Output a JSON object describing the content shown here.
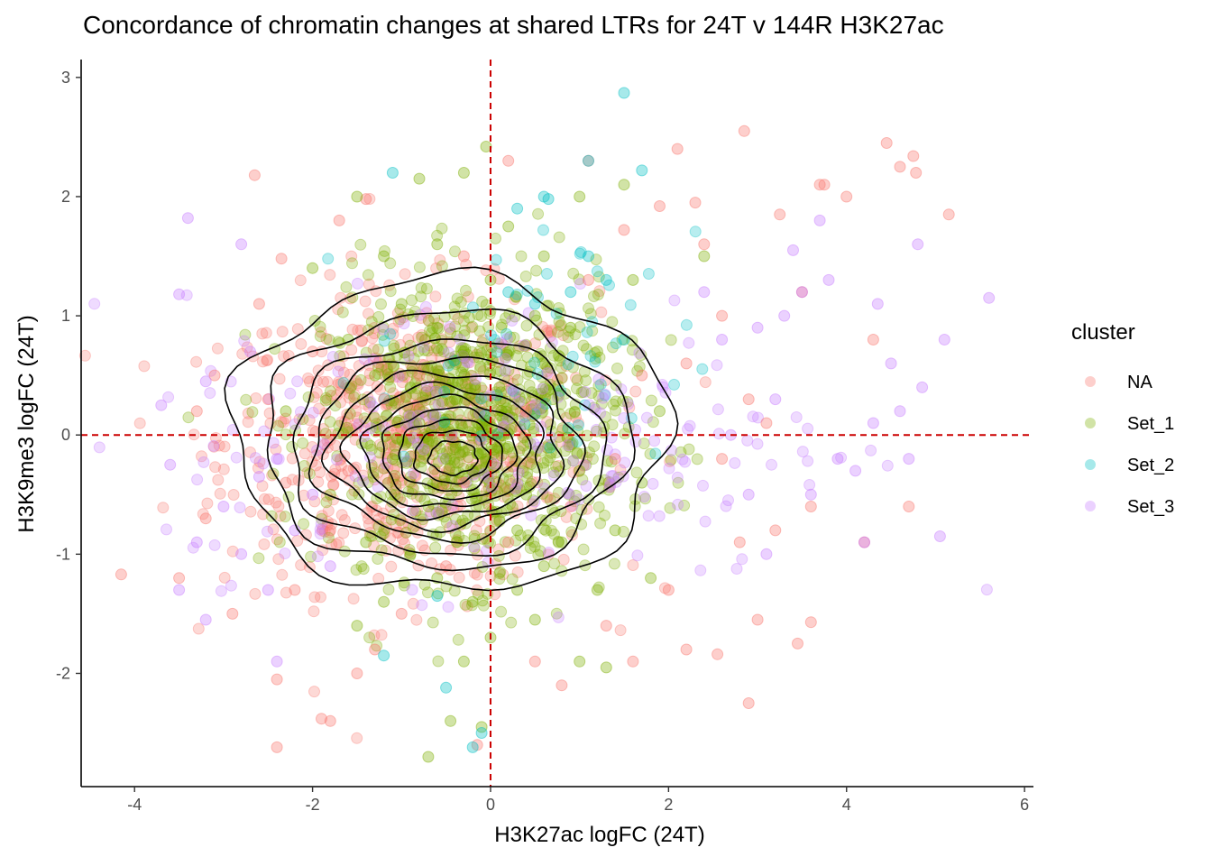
{
  "chart_data": {
    "type": "scatter",
    "title": "Concordance of chromatin changes at shared LTRs for 24T v 144R H3K27ac",
    "xlabel": "H3K27ac logFC (24T)",
    "ylabel": "H3K9me3 logFC (24T)",
    "xlim": [
      -4.6,
      6.1
    ],
    "ylim": [
      -2.95,
      3.15
    ],
    "xticks": [
      -4,
      -2,
      0,
      2,
      4,
      6
    ],
    "xtick_labels": [
      "-4",
      "-2",
      "0",
      "2",
      "4",
      "6"
    ],
    "yticks": [
      -2,
      -1,
      0,
      1,
      2,
      3
    ],
    "ytick_labels": [
      "-2",
      "-1",
      "0",
      "1",
      "2",
      "3"
    ],
    "reference_lines": [
      {
        "orientation": "vertical",
        "value": 0,
        "color": "#cc0000",
        "style": "dashed"
      },
      {
        "orientation": "horizontal",
        "value": 0,
        "color": "#cc0000",
        "style": "dashed"
      }
    ],
    "legend": {
      "title": "cluster",
      "position": "right",
      "entries": [
        {
          "label": "NA",
          "color": "#F8766D"
        },
        {
          "label": "Set_1",
          "color": "#7CAE00"
        },
        {
          "label": "Set_2",
          "color": "#00BFC4"
        },
        {
          "label": "Set_3",
          "color": "#C77CFF"
        }
      ]
    },
    "point_alpha": 0.3,
    "series": [
      {
        "name": "NA",
        "color": "#F8766D",
        "points": [
          [
            -4.15,
            -1.17
          ],
          [
            -3.5,
            -1.2
          ],
          [
            -2.65,
            2.18
          ],
          [
            -2.4,
            -2.62
          ],
          [
            -2.4,
            -2.05
          ],
          [
            -2.35,
            1.48
          ],
          [
            -1.9,
            -2.38
          ],
          [
            -1.8,
            -2.4
          ],
          [
            -1.7,
            1.8
          ],
          [
            -1.4,
            1.98
          ],
          [
            -1.0,
            -1.5
          ],
          [
            -0.3,
            1.5
          ],
          [
            -0.15,
            -2.6
          ],
          [
            0.2,
            2.3
          ],
          [
            0.5,
            -1.9
          ],
          [
            1.1,
            2.3
          ],
          [
            1.5,
            1.72
          ],
          [
            1.9,
            1.92
          ],
          [
            2.1,
            2.4
          ],
          [
            2.2,
            -1.8
          ],
          [
            2.3,
            1.95
          ],
          [
            2.4,
            1.6
          ],
          [
            2.55,
            -1.84
          ],
          [
            2.8,
            -0.9
          ],
          [
            2.85,
            2.55
          ],
          [
            2.9,
            -2.25
          ],
          [
            3.0,
            -1.55
          ],
          [
            3.25,
            1.85
          ],
          [
            3.45,
            -1.75
          ],
          [
            3.6,
            -1.57
          ],
          [
            3.7,
            2.1
          ],
          [
            3.75,
            2.1
          ],
          [
            4.0,
            2.0
          ],
          [
            4.45,
            2.45
          ],
          [
            4.6,
            2.25
          ],
          [
            4.75,
            2.34
          ],
          [
            4.78,
            2.2
          ],
          [
            5.15,
            1.85
          ],
          [
            3.5,
            1.2
          ],
          [
            3.2,
            -0.8
          ],
          [
            3.6,
            -0.6
          ],
          [
            4.2,
            -0.9
          ],
          [
            4.3,
            0.8
          ],
          [
            4.7,
            -0.6
          ],
          [
            2.6,
            -0.2
          ],
          [
            2.9,
            0.3
          ],
          [
            3.1,
            0.1
          ],
          [
            -3.1,
            0.5
          ],
          [
            -3.2,
            -0.7
          ],
          [
            -2.9,
            -1.5
          ],
          [
            -2.6,
            1.1
          ],
          [
            -3.3,
            0.2
          ],
          [
            -2.2,
            -1.3
          ],
          [
            -1.5,
            -2.0
          ],
          [
            -1.3,
            -1.8
          ],
          [
            0.8,
            -2.1
          ],
          [
            1.3,
            -1.6
          ],
          [
            1.6,
            -1.9
          ],
          [
            2.0,
            -1.3
          ],
          [
            2.6,
            1.0
          ],
          [
            -0.8,
            0.5
          ],
          [
            -0.3,
            -0.4
          ],
          [
            0.4,
            0.2
          ],
          [
            -1.6,
            -0.3
          ],
          [
            -1.2,
            0.3
          ],
          [
            0.9,
            -0.6
          ],
          [
            1.7,
            0.5
          ],
          [
            -2.0,
            0.7
          ],
          [
            -2.3,
            -0.4
          ],
          [
            1.1,
            1.3
          ],
          [
            -0.5,
            -1.1
          ],
          [
            0.2,
            -0.9
          ],
          [
            1.4,
            -0.2
          ],
          [
            2.2,
            0.6
          ],
          [
            -1.8,
            -0.8
          ],
          [
            -2.5,
            0.3
          ]
        ]
      },
      {
        "name": "Set_1",
        "color": "#7CAE00",
        "points": [
          [
            -0.7,
            -2.7
          ],
          [
            -0.45,
            -2.4
          ],
          [
            -0.1,
            -2.45
          ],
          [
            -0.05,
            2.42
          ],
          [
            -0.3,
            2.2
          ],
          [
            -0.8,
            2.15
          ],
          [
            -1.5,
            2.0
          ],
          [
            -1.2,
            -1.4
          ],
          [
            -1.5,
            -1.6
          ],
          [
            0.5,
            -1.55
          ],
          [
            1.0,
            -1.9
          ],
          [
            1.3,
            -1.95
          ],
          [
            1.8,
            -1.2
          ],
          [
            2.4,
            1.5
          ],
          [
            1.5,
            2.1
          ],
          [
            1.0,
            2.0
          ],
          [
            0.2,
            1.75
          ],
          [
            -0.6,
            1.6
          ],
          [
            -1.2,
            1.5
          ],
          [
            -2.0,
            1.4
          ],
          [
            -0.3,
            -1.9
          ],
          [
            0.0,
            -1.7
          ],
          [
            0.3,
            -1.3
          ],
          [
            -0.9,
            -1.0
          ],
          [
            0.6,
            -1.1
          ],
          [
            1.4,
            -0.8
          ],
          [
            -1.6,
            0.8
          ],
          [
            -0.6,
            0.9
          ],
          [
            0.5,
            1.0
          ],
          [
            1.2,
            0.7
          ],
          [
            -0.4,
            0.3
          ],
          [
            0.1,
            0.4
          ],
          [
            -0.2,
            -0.3
          ],
          [
            -0.7,
            -0.6
          ],
          [
            0.4,
            -0.5
          ],
          [
            1.0,
            -0.3
          ],
          [
            -1.1,
            -0.2
          ],
          [
            -0.9,
            0.4
          ],
          [
            0.7,
            0.3
          ],
          [
            -0.3,
            0.7
          ],
          [
            -0.5,
            -0.2
          ],
          [
            -0.1,
            0.1
          ],
          [
            0.2,
            -0.1
          ],
          [
            -0.8,
            0.1
          ],
          [
            -1.3,
            0.5
          ],
          [
            0.9,
            0.9
          ],
          [
            1.6,
            1.3
          ],
          [
            -1.0,
            1.1
          ],
          [
            0.3,
            -0.8
          ],
          [
            -0.6,
            -1.2
          ],
          [
            0.8,
            -0.9
          ],
          [
            1.7,
            -0.4
          ],
          [
            -1.8,
            -0.5
          ],
          [
            -2.3,
            0.2
          ],
          [
            1.9,
            0.2
          ],
          [
            0.0,
            1.3
          ],
          [
            -0.2,
            -1.4
          ],
          [
            0.6,
            1.5
          ],
          [
            -1.4,
            -0.9
          ],
          [
            1.2,
            -1.3
          ]
        ]
      },
      {
        "name": "Set_2",
        "color": "#00BFC4",
        "points": [
          [
            1.5,
            2.87
          ],
          [
            1.1,
            2.3
          ],
          [
            1.7,
            2.22
          ],
          [
            -1.1,
            2.2
          ],
          [
            0.6,
            2.0
          ],
          [
            0.65,
            1.98
          ],
          [
            0.3,
            1.9
          ],
          [
            1.1,
            1.5
          ],
          [
            1.3,
            1.3
          ],
          [
            0.9,
            1.2
          ],
          [
            0.5,
            1.1
          ],
          [
            -0.1,
            -2.5
          ],
          [
            -0.2,
            -2.62
          ],
          [
            -0.5,
            -2.12
          ],
          [
            -1.2,
            -1.85
          ],
          [
            -0.6,
            -1.35
          ],
          [
            1.5,
            0.8
          ],
          [
            0.2,
            1.2
          ]
        ]
      },
      {
        "name": "Set_3",
        "color": "#C77CFF",
        "points": [
          [
            -3.4,
            1.82
          ],
          [
            -3.5,
            1.18
          ],
          [
            -3.5,
            -1.3
          ],
          [
            -3.2,
            -1.55
          ],
          [
            -2.8,
            -1.0
          ],
          [
            -3.6,
            -0.25
          ],
          [
            -3.7,
            0.25
          ],
          [
            -3.2,
            0.45
          ],
          [
            -2.6,
            -0.35
          ],
          [
            -2.8,
            1.6
          ],
          [
            -2.4,
            -1.9
          ],
          [
            3.4,
            1.55
          ],
          [
            3.5,
            1.2
          ],
          [
            3.8,
            1.3
          ],
          [
            3.9,
            -0.2
          ],
          [
            4.1,
            -0.3
          ],
          [
            4.5,
            0.6
          ],
          [
            4.7,
            -0.2
          ],
          [
            4.8,
            1.6
          ],
          [
            5.1,
            0.8
          ],
          [
            5.6,
            1.15
          ],
          [
            5.05,
            -0.85
          ],
          [
            4.85,
            0.4
          ],
          [
            4.35,
            1.1
          ],
          [
            3.3,
            1.0
          ],
          [
            3.0,
            0.9
          ],
          [
            2.6,
            0.8
          ],
          [
            3.1,
            -1.0
          ],
          [
            3.6,
            -0.5
          ],
          [
            2.9,
            -0.5
          ],
          [
            2.4,
            1.2
          ],
          [
            3.2,
            0.3
          ],
          [
            2.7,
            0.0
          ],
          [
            4.2,
            -0.9
          ],
          [
            4.6,
            0.2
          ],
          [
            3.7,
            1.8
          ],
          [
            4.3,
            0.1
          ],
          [
            -3.0,
            -0.6
          ],
          [
            -2.7,
            0.7
          ],
          [
            -3.3,
            -0.9
          ],
          [
            -2.5,
            -1.3
          ],
          [
            -1.8,
            -1.1
          ],
          [
            -2.0,
            -0.5
          ],
          [
            -2.4,
            -0.2
          ],
          [
            -2.2,
            -0.8
          ]
        ]
      }
    ],
    "density_contours": "black 2D density contour lines centered near (-0.5, -0.2)"
  }
}
